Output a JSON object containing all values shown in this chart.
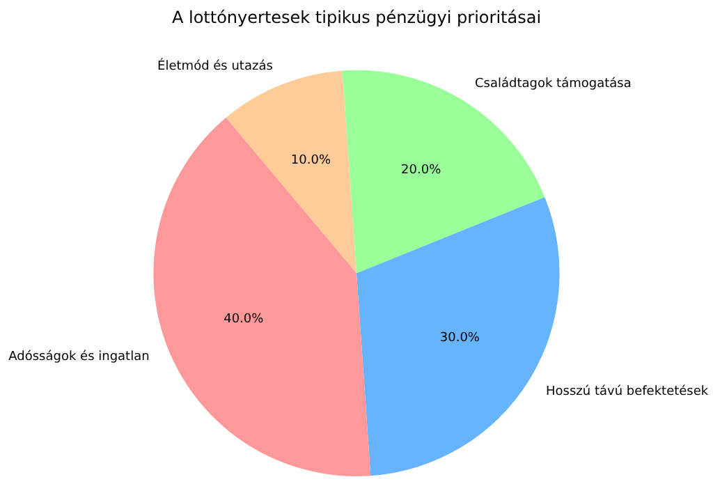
{
  "chart_data": {
    "type": "pie",
    "title": "A lottónyertesek tipikus pénzügyi prioritásai",
    "categories": [
      "Életmód és utazás",
      "Családtagok támogatása",
      "Hosszú távú befektetések",
      "Adósságok és ingatlan"
    ],
    "values": [
      10,
      20,
      30,
      40
    ],
    "colors": [
      "#ffcc99",
      "#99ff99",
      "#66b3ff",
      "#ff9999"
    ],
    "value_labels": [
      "10.0%",
      "20.0%",
      "30.0%",
      "40.0%"
    ],
    "legend": false
  }
}
